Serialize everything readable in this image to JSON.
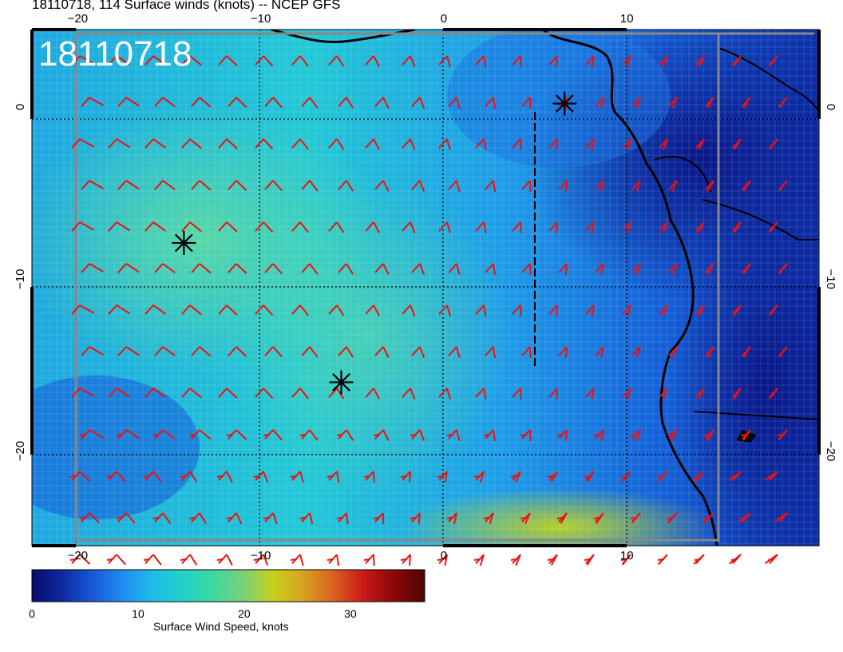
{
  "title": "18110718, 114 Surface winds (knots) -- NCEP GFS",
  "map": {
    "stamp": "18110718",
    "lon_ticks": [
      "−20",
      "−10",
      "0",
      "10"
    ],
    "lat_ticks": [
      "0",
      "−10",
      "−20"
    ],
    "lon_range": [
      -22.5,
      20.5
    ],
    "lat_range": [
      4.5,
      -25.5
    ],
    "barb_color": "#ee1111",
    "markers": [
      {
        "lon": 6.6,
        "lat": 0.2
      },
      {
        "lon": -14.2,
        "lat": -7.9
      },
      {
        "lon": -5.6,
        "lat": -16.0
      }
    ]
  },
  "colorbar": {
    "label": "Surface Wind Speed, knots",
    "ticks": [
      "0",
      "10",
      "20",
      "30"
    ],
    "range": [
      0,
      37
    ],
    "colors": [
      "#0a0a6e",
      "#0d2aa0",
      "#1858d8",
      "#1e8cf0",
      "#1fbce8",
      "#22d2c8",
      "#3cd8a0",
      "#7cd07a",
      "#c8d01a",
      "#d8a020",
      "#d86020",
      "#c81818",
      "#8a0808",
      "#500404"
    ]
  }
}
